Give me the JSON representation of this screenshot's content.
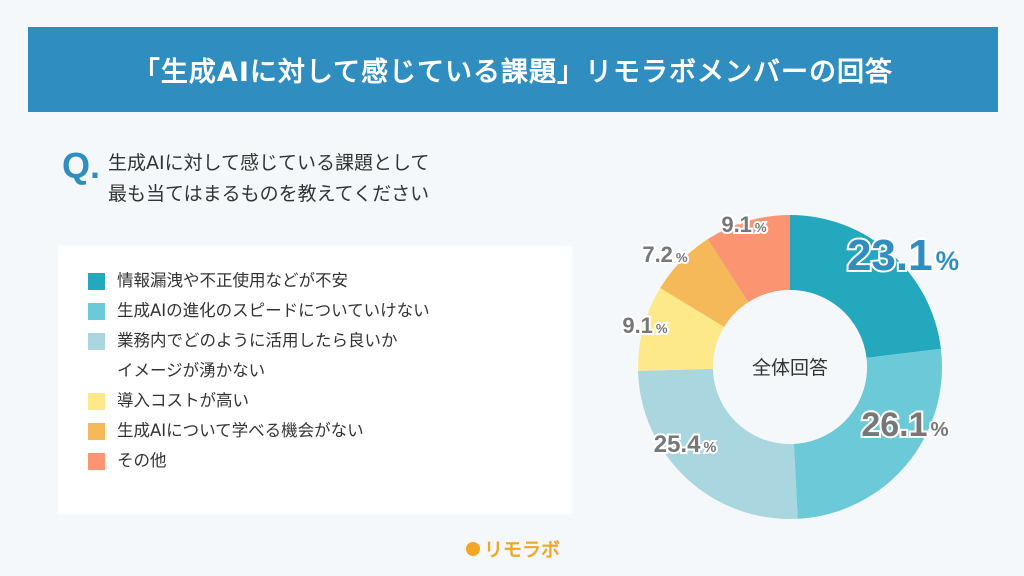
{
  "header": {
    "title": "「生成AIに対して感じている課題」リモラボメンバーの回答"
  },
  "question": {
    "mark": "Q.",
    "lines": [
      "生成AIに対して感じている課題として",
      "最も当てはまるものを教えてください"
    ]
  },
  "logo": {
    "text": "リモラボ",
    "color": "#f3a623"
  },
  "chart_data": {
    "type": "pie",
    "subtype": "donut",
    "center_label": "全体回答",
    "start": "top",
    "direction": "clockwise",
    "categories": [
      "情報漏洩や不正使用などが不安",
      "生成AIの進化のスピードについていけない",
      "業務内でどのように活用したら良いかイメージが湧かない",
      "導入コストが高い",
      "生成AIについて学べる機会がない",
      "その他"
    ],
    "legend_lines": [
      [
        "情報漏洩や不正使用などが不安"
      ],
      [
        "生成AIの進化のスピードについていけない"
      ],
      [
        "業務内でどのように活用したら良いか",
        "イメージが湧かない"
      ],
      [
        "導入コストが高い"
      ],
      [
        "生成AIについて学べる機会がない"
      ],
      [
        "その他"
      ]
    ],
    "values": [
      23.1,
      26.1,
      25.4,
      9.1,
      7.2,
      9.1
    ],
    "labels": [
      "23.1",
      "26.1",
      "25.4",
      "9.1",
      "7.2",
      "9.1"
    ],
    "unit": "%",
    "colors": [
      "#24a8bd",
      "#6ccad8",
      "#a9d6df",
      "#fde98a",
      "#f5b95a",
      "#fb9470"
    ],
    "legend_placement": "left"
  }
}
